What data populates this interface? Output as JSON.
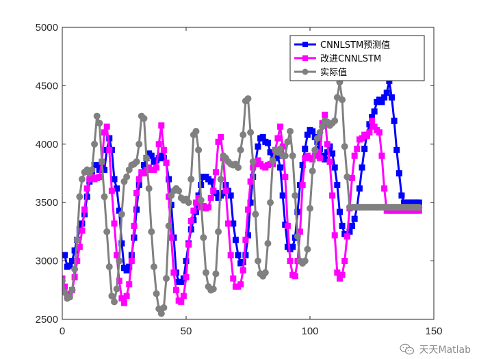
{
  "chart_data": {
    "type": "line",
    "title": "",
    "xlabel": "",
    "ylabel": "",
    "xlim": [
      0,
      150
    ],
    "ylim": [
      2500,
      5000
    ],
    "x_ticks": [
      0,
      50,
      100,
      150
    ],
    "y_ticks": [
      2500,
      3000,
      3500,
      4000,
      4500,
      5000
    ],
    "x_tick_labels": [
      "0",
      "50",
      "100",
      "150"
    ],
    "y_tick_labels": [
      "2500",
      "3000",
      "3500",
      "4000",
      "4500",
      "5000"
    ],
    "grid": false,
    "legend_position": "top-right",
    "series": [
      {
        "name": "CNNLSTM预测值",
        "color": "#0000ff",
        "marker": "square",
        "x": [
          0,
          1,
          2,
          3,
          4,
          5,
          6,
          7,
          8,
          9,
          10,
          11,
          12,
          13,
          14,
          15,
          16,
          17,
          18,
          19,
          20,
          21,
          22,
          23,
          24,
          25,
          26,
          27,
          28,
          29,
          30,
          31,
          32,
          33,
          34,
          35,
          36,
          37,
          38,
          39,
          40,
          41,
          42,
          43,
          44,
          45,
          46,
          47,
          48,
          49,
          50,
          51,
          52,
          53,
          54,
          55,
          56,
          57,
          58,
          59,
          60,
          61,
          62,
          63,
          64,
          65,
          66,
          67,
          68,
          69,
          70,
          71,
          72,
          73,
          74,
          75,
          76,
          77,
          78,
          79,
          80,
          81,
          82,
          83,
          84,
          85,
          86,
          87,
          88,
          89,
          90,
          91,
          92,
          93,
          94,
          95,
          96,
          97,
          98,
          99,
          100,
          101,
          102,
          103,
          104,
          105,
          106,
          107,
          108,
          109,
          110,
          111,
          112,
          113,
          114,
          115,
          116,
          117,
          118,
          119,
          120,
          121,
          122,
          123,
          124,
          125,
          126,
          127,
          128,
          129,
          130,
          131,
          132,
          133,
          134,
          135,
          136,
          137,
          138,
          139,
          140,
          141,
          142,
          143,
          144
        ],
        "values": [
          3050,
          3050,
          2950,
          2960,
          3000,
          3090,
          3180,
          3270,
          3320,
          3400,
          3550,
          3680,
          3770,
          3820,
          3820,
          3780,
          3800,
          3780,
          3950,
          4050,
          3950,
          3700,
          3620,
          3430,
          3150,
          2940,
          2920,
          2950,
          3050,
          3200,
          3440,
          3650,
          3750,
          3820,
          3880,
          3920,
          3900,
          3850,
          3860,
          3880,
          3900,
          3880,
          3840,
          3700,
          3480,
          3200,
          2900,
          2820,
          2820,
          2850,
          3000,
          3150,
          3270,
          3350,
          3420,
          3560,
          3650,
          3720,
          3720,
          3700,
          3680,
          3600,
          3580,
          3540,
          3560,
          3580,
          3650,
          3600,
          3560,
          3320,
          3180,
          3050,
          2980,
          2990,
          3050,
          3220,
          3500,
          3720,
          3840,
          3980,
          4050,
          4060,
          4020,
          4010,
          3930,
          3860,
          3880,
          3900,
          3800,
          3560,
          3310,
          3120,
          3100,
          3120,
          3200,
          3420,
          3650,
          3820,
          3960,
          4080,
          4120,
          4110,
          4060,
          4020,
          3960,
          3900,
          3870,
          3930,
          3980,
          3920,
          3800,
          3650,
          3420,
          3300,
          3230,
          3210,
          3250,
          3300,
          3360,
          3460,
          3620,
          3800,
          3960,
          4080,
          4170,
          4230,
          4280,
          4360,
          4380,
          4360,
          4400,
          4440,
          4540,
          4400,
          4200,
          3950,
          3750,
          3560,
          3500,
          3500,
          3500,
          3500,
          3500,
          3500,
          3500
        ]
      },
      {
        "name": "改进CNNLSTM",
        "color": "#ff00ff",
        "marker": "square",
        "x": [
          0,
          1,
          2,
          3,
          4,
          5,
          6,
          7,
          8,
          9,
          10,
          11,
          12,
          13,
          14,
          15,
          16,
          17,
          18,
          19,
          20,
          21,
          22,
          23,
          24,
          25,
          26,
          27,
          28,
          29,
          30,
          31,
          32,
          33,
          34,
          35,
          36,
          37,
          38,
          39,
          40,
          41,
          42,
          43,
          44,
          45,
          46,
          47,
          48,
          49,
          50,
          51,
          52,
          53,
          54,
          55,
          56,
          57,
          58,
          59,
          60,
          61,
          62,
          63,
          64,
          65,
          66,
          67,
          68,
          69,
          70,
          71,
          72,
          73,
          74,
          75,
          76,
          77,
          78,
          79,
          80,
          81,
          82,
          83,
          84,
          85,
          86,
          87,
          88,
          89,
          90,
          91,
          92,
          93,
          94,
          95,
          96,
          97,
          98,
          99,
          100,
          101,
          102,
          103,
          104,
          105,
          106,
          107,
          108,
          109,
          110,
          111,
          112,
          113,
          114,
          115,
          116,
          117,
          118,
          119,
          120,
          121,
          122,
          123,
          124,
          125,
          126,
          127,
          128,
          129,
          130,
          131,
          132,
          133,
          134,
          135,
          136,
          137,
          138,
          139,
          140,
          141,
          142,
          143,
          144
        ],
        "values": [
          2850,
          2780,
          2720,
          2700,
          2750,
          2860,
          3000,
          3120,
          3260,
          3440,
          3620,
          3700,
          3720,
          3700,
          3710,
          3720,
          3850,
          4100,
          4150,
          3950,
          3600,
          3320,
          3050,
          2830,
          2680,
          2640,
          2700,
          2800,
          3000,
          3300,
          3580,
          3700,
          3760,
          3750,
          3780,
          3800,
          3780,
          3780,
          3800,
          4000,
          4160,
          3950,
          3840,
          3550,
          3200,
          2900,
          2750,
          2660,
          2650,
          2700,
          2860,
          3140,
          3340,
          3430,
          3500,
          3540,
          3460,
          3470,
          3450,
          3460,
          3540,
          3600,
          3760,
          4020,
          4060,
          3880,
          3600,
          3320,
          3050,
          2850,
          2780,
          2780,
          2800,
          2920,
          3180,
          3440,
          3680,
          3800,
          3830,
          3860,
          3830,
          3810,
          3800,
          3820,
          3830,
          3830,
          3950,
          4050,
          4150,
          3980,
          3720,
          3300,
          3000,
          2880,
          2870,
          3000,
          3250,
          3650,
          3880,
          3900,
          3880,
          3870,
          3900,
          3930,
          3880,
          4180,
          4250,
          4000,
          3850,
          3560,
          3220,
          2900,
          2850,
          2880,
          3000,
          3210,
          3450,
          3710,
          3900,
          3960,
          4040,
          4050,
          4080,
          4070,
          4100,
          4200,
          4150,
          4120,
          4100,
          3900,
          3620,
          3430,
          3430,
          3430,
          3430,
          3430,
          3430,
          3430,
          3430,
          3430,
          3430,
          3430,
          3430,
          3430,
          3430
        ]
      },
      {
        "name": "实际值",
        "color": "#808080",
        "marker": "circle",
        "x": [
          0,
          1,
          2,
          3,
          4,
          5,
          6,
          7,
          8,
          9,
          10,
          11,
          12,
          13,
          14,
          15,
          16,
          17,
          18,
          19,
          20,
          21,
          22,
          23,
          24,
          25,
          26,
          27,
          28,
          29,
          30,
          31,
          32,
          33,
          34,
          35,
          36,
          37,
          38,
          39,
          40,
          41,
          42,
          43,
          44,
          45,
          46,
          47,
          48,
          49,
          50,
          51,
          52,
          53,
          54,
          55,
          56,
          57,
          58,
          59,
          60,
          61,
          62,
          63,
          64,
          65,
          66,
          67,
          68,
          69,
          70,
          71,
          72,
          73,
          74,
          75,
          76,
          77,
          78,
          79,
          80,
          81,
          82,
          83,
          84,
          85,
          86,
          87,
          88,
          89,
          90,
          91,
          92,
          93,
          94,
          95,
          96,
          97,
          98,
          99,
          100,
          101,
          102,
          103,
          104,
          105,
          106,
          107,
          108,
          109,
          110,
          111,
          112,
          113,
          114,
          115,
          116,
          117,
          118,
          119,
          120,
          121,
          122,
          123,
          124,
          125,
          126,
          127,
          128,
          129,
          130,
          131,
          132,
          133,
          134,
          135,
          136,
          137,
          138,
          139,
          140,
          141,
          142,
          143,
          144
        ],
        "values": [
          2830,
          2730,
          2680,
          2690,
          2750,
          2930,
          3180,
          3550,
          3700,
          3760,
          3780,
          3750,
          3780,
          4000,
          4240,
          4180,
          3850,
          3550,
          3250,
          2950,
          2700,
          2650,
          2760,
          3000,
          3400,
          3680,
          3720,
          3780,
          3820,
          3830,
          3850,
          4000,
          4240,
          4220,
          3880,
          3620,
          3250,
          2950,
          2720,
          2590,
          2550,
          2600,
          2850,
          3300,
          3560,
          3600,
          3620,
          3600,
          3540,
          3520,
          3530,
          3500,
          3700,
          4080,
          4110,
          3950,
          3520,
          3200,
          2900,
          2780,
          2750,
          2760,
          2890,
          3250,
          3700,
          3900,
          3880,
          3850,
          3830,
          3820,
          3830,
          3800,
          3950,
          4080,
          4370,
          4390,
          4100,
          3850,
          3400,
          3000,
          2890,
          2870,
          2900,
          3150,
          3500,
          3860,
          3950,
          3930,
          3960,
          3900,
          3900,
          4020,
          4110,
          3900,
          3560,
          3210,
          3000,
          2980,
          3000,
          3100,
          3450,
          3770,
          3950,
          4050,
          4100,
          4150,
          4200,
          4190,
          4160,
          4180,
          4200,
          4400,
          4530,
          4380,
          3980,
          3720,
          3460,
          3460,
          3460,
          3460,
          3460,
          3460,
          3460,
          3460,
          3460,
          3460,
          3460,
          3460,
          3460,
          3460,
          3460,
          3460,
          3460,
          3460,
          3460,
          3460,
          3460,
          3460,
          3460,
          3460,
          3460,
          3460,
          3460,
          3460,
          3460
        ]
      }
    ]
  },
  "watermark": {
    "text": "天天Matlab",
    "icon": "wechat-icon"
  }
}
